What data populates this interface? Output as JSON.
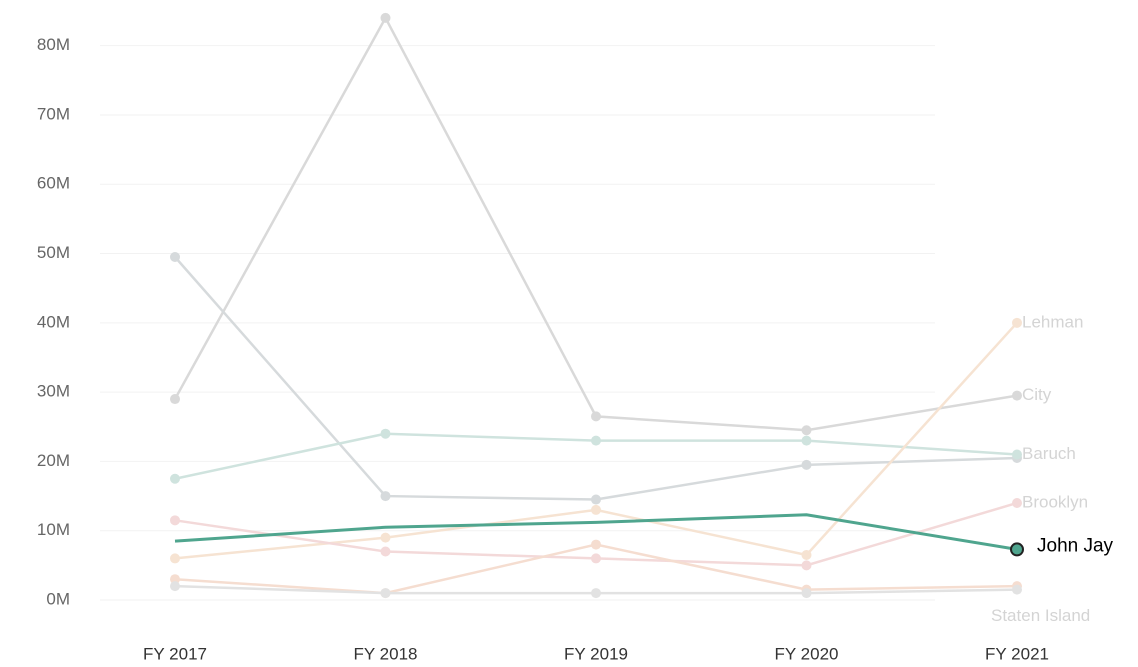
{
  "chart_data": {
    "type": "line",
    "categories": [
      "FY 2017",
      "FY 2018",
      "FY 2019",
      "FY 2020",
      "FY 2021"
    ],
    "series": [
      {
        "name": "City",
        "color": "#d9d9d9",
        "values": [
          29,
          84,
          26.5,
          24.5,
          29.5
        ]
      },
      {
        "values": [
          49.5,
          15,
          14.5,
          19.5,
          20.5
        ],
        "color": "#d6dadc"
      },
      {
        "name": "Baruch",
        "color": "#cfe3de",
        "values": [
          17.5,
          24,
          23,
          23,
          21
        ]
      },
      {
        "name": "Lehman",
        "color": "#f6e3d2",
        "values": [
          6,
          9,
          13,
          6.5,
          40
        ]
      },
      {
        "name": "Brooklyn",
        "color": "#f3d9d9",
        "values": [
          11.5,
          7,
          6,
          5,
          14
        ]
      },
      {
        "values": [
          3,
          1,
          8,
          1.5,
          2
        ],
        "color": "#f5ddd0"
      },
      {
        "name": "Staten Island",
        "color": "#e2e2e2",
        "values": [
          2,
          1,
          1,
          1,
          1.5
        ]
      },
      {
        "name": "John Jay",
        "color": "#4fa58e",
        "values": [
          8.5,
          10.5,
          11.2,
          12.3,
          7.3
        ],
        "highlight": true
      }
    ],
    "ylim": [
      -1.5,
      85
    ],
    "yticks": [
      {
        "value": 0,
        "label": "0M"
      },
      {
        "value": 10,
        "label": "10M"
      },
      {
        "value": 20,
        "label": "20M"
      },
      {
        "value": 30,
        "label": "30M"
      },
      {
        "value": 40,
        "label": "40M"
      },
      {
        "value": 50,
        "label": "50M"
      },
      {
        "value": 60,
        "label": "60M"
      },
      {
        "value": 70,
        "label": "70M"
      },
      {
        "value": 80,
        "label": "80M"
      }
    ],
    "grid": true
  }
}
